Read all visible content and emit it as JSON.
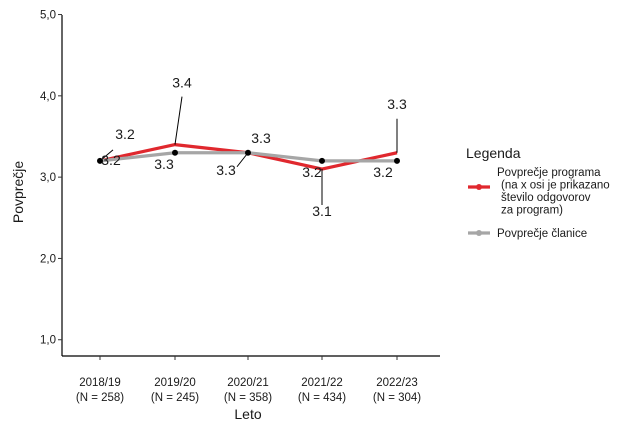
{
  "chart_data": {
    "type": "line",
    "title": "",
    "xlabel": "Leto",
    "ylabel": "Povprečje",
    "ylim": [
      1.0,
      5.0
    ],
    "y_ticks": [
      "1,0",
      "2,0",
      "3,0",
      "4,0",
      "5,0"
    ],
    "y_tick_values": [
      1,
      2,
      3,
      4,
      5
    ],
    "grid": false,
    "legend_position": "right",
    "legend_title": "Legenda",
    "categories": [
      [
        "2018/19",
        "(N = 258)"
      ],
      [
        "2019/20",
        "(N = 245)"
      ],
      [
        "2020/21",
        "(N = 358)"
      ],
      [
        "2021/22",
        "(N = 434)"
      ],
      [
        "2022/23",
        "(N = 304)"
      ]
    ],
    "series": [
      {
        "name": [
          "Povprečje programa",
          "(na x osi je prikazano",
          "število odgovorov",
          "za program)"
        ],
        "color": "#e0282e",
        "values": [
          3.2,
          3.4,
          3.3,
          3.1,
          3.3
        ],
        "labels": [
          "3.2",
          "3.4",
          "3.3",
          "3.1",
          "3.3"
        ]
      },
      {
        "name": [
          "Povprečje članice"
        ],
        "color": "#a6a6a6",
        "values": [
          3.2,
          3.3,
          3.3,
          3.2,
          3.2
        ],
        "labels": [
          "3.2",
          "3.3",
          "3.3",
          "3.2",
          "3.2"
        ]
      }
    ]
  }
}
